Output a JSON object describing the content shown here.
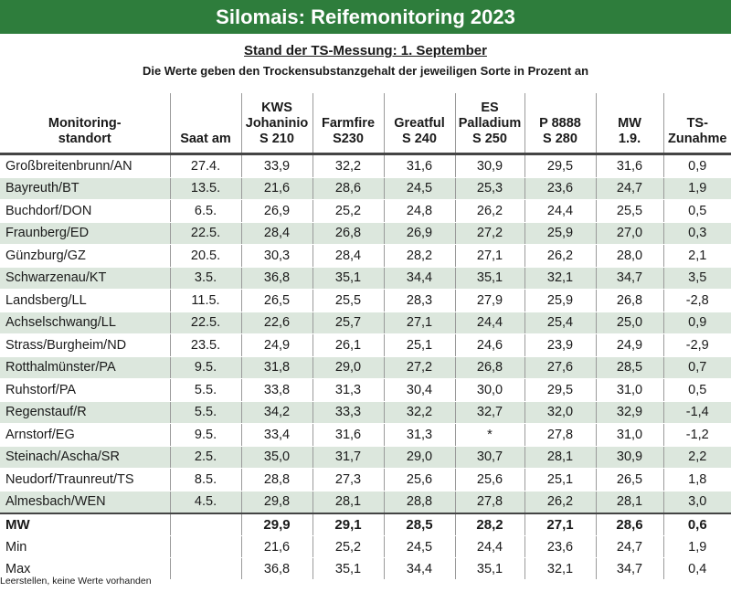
{
  "title": "Silomais: Reifemonitoring 2023",
  "subtitle": "Stand der TS-Messung: 1. September",
  "description": "Die Werte geben den Trockensubstanzgehalt der jeweiligen Sorte in Prozent an",
  "columns": [
    "Monitoring-\nstandort",
    "Saat am",
    "KWS\nJohaninio\nS 210",
    "Farmfire\nS230",
    "Greatful\nS 240",
    "ES\nPalladium\nS 250",
    "P 8888\nS 280",
    "MW\n1.9.",
    "TS-\nZunahme"
  ],
  "rows": [
    [
      "Großbreitenbrunn/AN",
      "27.4.",
      "33,9",
      "32,2",
      "31,6",
      "30,9",
      "29,5",
      "31,6",
      "0,9"
    ],
    [
      "Bayreuth/BT",
      "13.5.",
      "21,6",
      "28,6",
      "24,5",
      "25,3",
      "23,6",
      "24,7",
      "1,9"
    ],
    [
      "Buchdorf/DON",
      "6.5.",
      "26,9",
      "25,2",
      "24,8",
      "26,2",
      "24,4",
      "25,5",
      "0,5"
    ],
    [
      "Fraunberg/ED",
      "22.5.",
      "28,4",
      "26,8",
      "26,9",
      "27,2",
      "25,9",
      "27,0",
      "0,3"
    ],
    [
      "Günzburg/GZ",
      "20.5.",
      "30,3",
      "28,4",
      "28,2",
      "27,1",
      "26,2",
      "28,0",
      "2,1"
    ],
    [
      "Schwarzenau/KT",
      "3.5.",
      "36,8",
      "35,1",
      "34,4",
      "35,1",
      "32,1",
      "34,7",
      "3,5"
    ],
    [
      "Landsberg/LL",
      "11.5.",
      "26,5",
      "25,5",
      "28,3",
      "27,9",
      "25,9",
      "26,8",
      "-2,8"
    ],
    [
      "Achselschwang/LL",
      "22.5.",
      "22,6",
      "25,7",
      "27,1",
      "24,4",
      "25,4",
      "25,0",
      "0,9"
    ],
    [
      "Strass/Burgheim/ND",
      "23.5.",
      "24,9",
      "26,1",
      "25,1",
      "24,6",
      "23,9",
      "24,9",
      "-2,9"
    ],
    [
      "Rotthalmünster/PA",
      "9.5.",
      "31,8",
      "29,0",
      "27,2",
      "26,8",
      "27,6",
      "28,5",
      "0,7"
    ],
    [
      "Ruhstorf/PA",
      "5.5.",
      "33,8",
      "31,3",
      "30,4",
      "30,0",
      "29,5",
      "31,0",
      "0,5"
    ],
    [
      "Regenstauf/R",
      "5.5.",
      "34,2",
      "33,3",
      "32,2",
      "32,7",
      "32,0",
      "32,9",
      "-1,4"
    ],
    [
      "Arnstorf/EG",
      "9.5.",
      "33,4",
      "31,6",
      "31,3",
      "*",
      "27,8",
      "31,0",
      "-1,2"
    ],
    [
      "Steinach/Ascha/SR",
      "2.5.",
      "35,0",
      "31,7",
      "29,0",
      "30,7",
      "28,1",
      "30,9",
      "2,2"
    ],
    [
      "Neudorf/Traunreut/TS",
      "8.5.",
      "28,8",
      "27,3",
      "25,6",
      "25,6",
      "25,1",
      "26,5",
      "1,8"
    ],
    [
      "Almesbach/WEN",
      "4.5.",
      "29,8",
      "28,1",
      "28,8",
      "27,8",
      "26,2",
      "28,1",
      "3,0"
    ]
  ],
  "summary_rows": [
    [
      "MW",
      "",
      "29,9",
      "29,1",
      "28,5",
      "28,2",
      "27,1",
      "28,6",
      "0,6"
    ],
    [
      "Min",
      "",
      "21,6",
      "25,2",
      "24,5",
      "24,4",
      "23,6",
      "24,7",
      "1,9"
    ],
    [
      "Max",
      "",
      "36,8",
      "35,1",
      "34,4",
      "35,1",
      "32,1",
      "34,7",
      "0,4"
    ]
  ],
  "footnote": "Leerstellen, keine Werte vorhanden",
  "colors": {
    "title_bar": "#2e7d3c",
    "stripe": "#dce7dd"
  }
}
